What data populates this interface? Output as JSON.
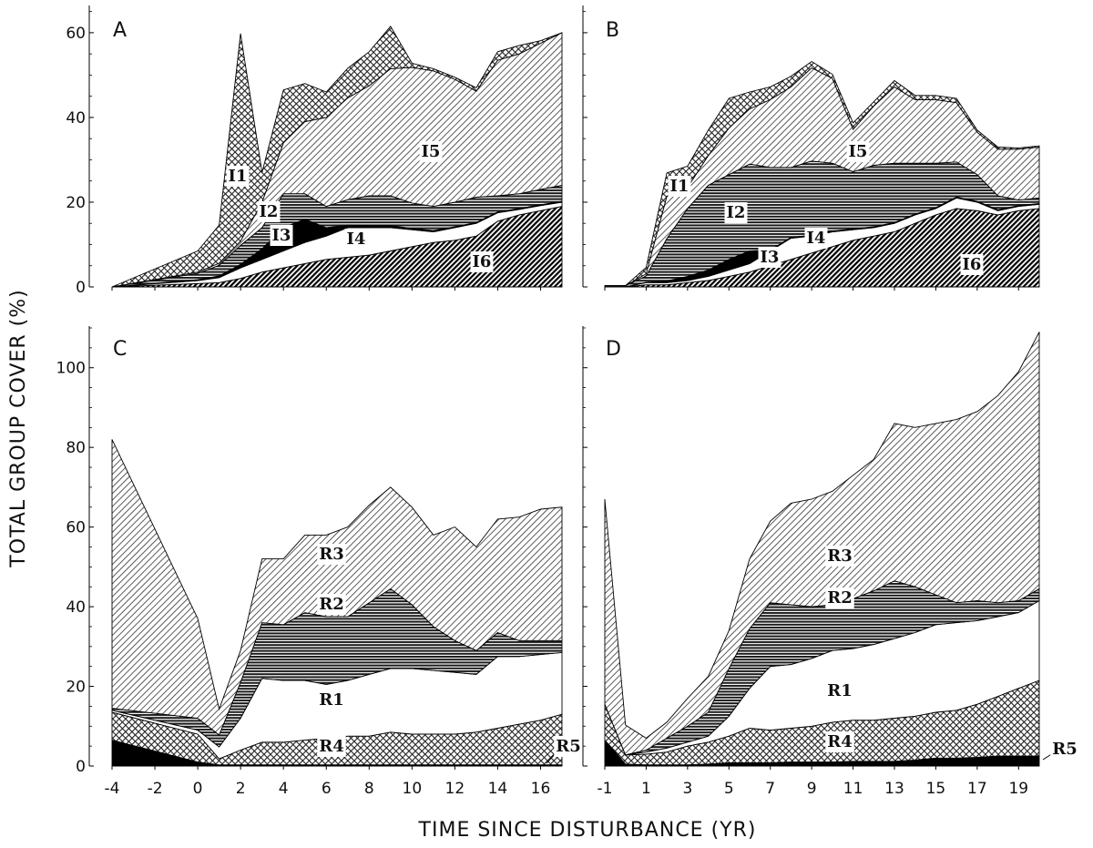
{
  "figure": {
    "y_axis_title": "TOTAL GROUP COVER (%)",
    "x_axis_title": "TIME SINCE DISTURBANCE (YR)"
  },
  "chart_data": [
    {
      "type": "area",
      "panel": "A",
      "stacked": true,
      "xlim": [
        -4,
        17
      ],
      "ylim": [
        0,
        66
      ],
      "yticks": [
        0,
        20,
        40,
        60
      ],
      "xticks": [
        -4,
        -2,
        0,
        2,
        4,
        6,
        8,
        10,
        12,
        14,
        16
      ],
      "show_x_tick_labels": false,
      "x": [
        -4,
        0,
        1,
        2,
        3,
        4,
        5,
        6,
        7,
        8,
        9,
        10,
        11,
        12,
        13,
        14,
        15,
        16,
        17
      ],
      "series": [
        {
          "name": "I6",
          "pattern": "hatch-dense",
          "values": [
            0,
            0.8,
            1,
            2,
            3.5,
            4.5,
            5.5,
            6.5,
            7,
            7.5,
            8.5,
            9.5,
            10.5,
            11,
            12,
            15.5,
            17,
            18,
            19
          ]
        },
        {
          "name": "I4",
          "pattern": "white",
          "values": [
            0,
            0.7,
            1.2,
            2.5,
            3,
            4,
            5,
            5.5,
            7,
            6.5,
            5.5,
            4,
            2.5,
            3,
            3,
            2,
            1.3,
            1.2,
            1
          ]
        },
        {
          "name": "I3",
          "pattern": "black",
          "values": [
            0,
            0.2,
            0.4,
            0.8,
            2.5,
            5.5,
            5.5,
            2,
            0.6,
            0.5,
            0.5,
            0.3,
            0.3,
            0.2,
            0.2,
            0.2,
            0.2,
            0.2,
            0.2
          ]
        },
        {
          "name": "I2",
          "pattern": "horizontal",
          "values": [
            0,
            1.5,
            2.5,
            4.5,
            5,
            8,
            6,
            5,
            6,
            7,
            7,
            6,
            5.7,
            5.8,
            6,
            3.8,
            3.5,
            3.6,
            3.8
          ]
        },
        {
          "name": "I5",
          "pattern": "hatch-light",
          "values": [
            0,
            0.3,
            0.5,
            1,
            6,
            12,
            17,
            21,
            24,
            26,
            30,
            32,
            32,
            29,
            25,
            32,
            33,
            34.5,
            36
          ]
        },
        {
          "name": "I1",
          "pattern": "crosshatch",
          "values": [
            0,
            5,
            9,
            49,
            7,
            12.5,
            9,
            6,
            7,
            8,
            10,
            1,
            0.5,
            0.5,
            0.8,
            2,
            2,
            0.6,
            0
          ]
        }
      ]
    },
    {
      "type": "area",
      "panel": "B",
      "stacked": true,
      "xlim": [
        -1,
        20
      ],
      "ylim": [
        0,
        66
      ],
      "yticks": [
        0,
        20,
        40,
        60
      ],
      "xticks": [
        -1,
        1,
        3,
        5,
        7,
        9,
        11,
        13,
        15,
        17,
        19
      ],
      "show_x_tick_labels": false,
      "x": [
        -1,
        0,
        1,
        2,
        3,
        4,
        5,
        6,
        7,
        8,
        9,
        10,
        11,
        12,
        13,
        14,
        15,
        16,
        17,
        18,
        19,
        20
      ],
      "series": [
        {
          "name": "I6",
          "pattern": "hatch-dense",
          "values": [
            0,
            0,
            0.5,
            0.5,
            1,
            1.5,
            2.5,
            3.5,
            5,
            6.5,
            8,
            9.5,
            11,
            12,
            13,
            15,
            17,
            18.5,
            18,
            17,
            18,
            18.5
          ]
        },
        {
          "name": "I4",
          "pattern": "white",
          "values": [
            0,
            0,
            0.5,
            0.5,
            0.5,
            1,
            1.5,
            2,
            3.5,
            5,
            4,
            3.5,
            2.5,
            2,
            2,
            2,
            1.5,
            2.5,
            2,
            1,
            1,
            1
          ]
        },
        {
          "name": "I3",
          "pattern": "black",
          "values": [
            0,
            0,
            0.1,
            0.4,
            1,
            1.5,
            2.5,
            3,
            0.2,
            0.2,
            0.2,
            0.2,
            0.2,
            0.2,
            0.2,
            0.2,
            0.2,
            0.2,
            0.2,
            0.2,
            0.2,
            0.2
          ]
        },
        {
          "name": "I2",
          "pattern": "horizontal",
          "values": [
            0.3,
            0.3,
            1.5,
            10,
            16,
            20,
            20,
            20.5,
            19.5,
            16.5,
            17.5,
            16,
            13.5,
            14.5,
            14,
            12,
            10.5,
            8.3,
            6.3,
            3.3,
            1.3,
            1.3
          ]
        },
        {
          "name": "I5",
          "pattern": "hatch-light",
          "values": [
            0,
            0,
            0.5,
            10,
            5,
            7,
            11,
            13,
            16,
            19,
            22,
            20,
            10,
            14,
            18,
            15,
            15,
            14,
            10,
            11,
            12,
            12
          ]
        },
        {
          "name": "I1",
          "pattern": "crosshatch",
          "values": [
            0,
            0,
            1.5,
            5.5,
            5,
            6,
            7,
            4,
            3,
            2.5,
            1.5,
            1,
            1.5,
            1,
            1.5,
            1,
            1,
            1,
            0.5,
            0.5,
            0.3,
            0.3
          ]
        }
      ]
    },
    {
      "type": "area",
      "panel": "C",
      "stacked": true,
      "xlim": [
        -4,
        17
      ],
      "ylim": [
        0,
        110
      ],
      "yticks": [
        0,
        20,
        40,
        60,
        80,
        100
      ],
      "xticks": [
        -4,
        -2,
        0,
        2,
        4,
        6,
        8,
        10,
        12,
        14,
        16
      ],
      "xticklabels": [
        "-4",
        "-2",
        "0",
        "2",
        "4",
        "6",
        "8",
        "10",
        "12",
        "14",
        "16"
      ],
      "show_x_tick_labels": true,
      "x": [
        -4,
        0,
        1,
        2,
        3,
        4,
        5,
        6,
        7,
        8,
        9,
        10,
        11,
        12,
        13,
        14,
        15,
        16,
        17
      ],
      "series": [
        {
          "name": "R5",
          "pattern": "black",
          "values": [
            6.5,
            1,
            0.3,
            0.3,
            0.3,
            0.3,
            0.3,
            0.3,
            0.3,
            0.3,
            0.3,
            0.3,
            0.3,
            0.3,
            0.3,
            0.3,
            0.3,
            0.3,
            0.3
          ]
        },
        {
          "name": "R4",
          "pattern": "crosshatch",
          "values": [
            7,
            7,
            1.5,
            3.7,
            5.7,
            5.7,
            6.2,
            6.7,
            7.2,
            7.2,
            8.2,
            7.7,
            7.7,
            7.7,
            8.2,
            9.2,
            10.2,
            11.2,
            12.7
          ]
        },
        {
          "name": "R1",
          "pattern": "white",
          "values": [
            0.5,
            1,
            3,
            8,
            16,
            15.5,
            15,
            13.5,
            14,
            15.5,
            16,
            16.5,
            16,
            15.5,
            14.5,
            18,
            17,
            16.5,
            15.5
          ]
        },
        {
          "name": "R2",
          "pattern": "horizontal",
          "values": [
            0.5,
            3,
            3,
            9,
            14,
            14,
            17,
            17,
            16,
            18,
            20,
            16,
            11,
            8,
            6,
            6,
            4,
            3.5,
            3
          ]
        },
        {
          "name": "R3",
          "pattern": "hatch-light",
          "values": [
            67.5,
            25,
            6.5,
            8,
            16,
            16.5,
            19.5,
            20.5,
            22.5,
            24.5,
            25.5,
            24.5,
            23,
            28.5,
            26,
            28.5,
            31,
            33,
            33.5
          ]
        }
      ]
    },
    {
      "type": "area",
      "panel": "D",
      "stacked": true,
      "xlim": [
        -1,
        20
      ],
      "ylim": [
        0,
        110
      ],
      "yticks": [
        0,
        20,
        40,
        60,
        80,
        100
      ],
      "xticks": [
        -1,
        1,
        3,
        5,
        7,
        9,
        11,
        13,
        15,
        17,
        19
      ],
      "xticklabels": [
        "-1",
        "1",
        "3",
        "5",
        "7",
        "9",
        "11",
        "13",
        "15",
        "17",
        "19"
      ],
      "show_x_tick_labels": true,
      "x": [
        -1,
        0,
        1,
        2,
        3,
        4,
        5,
        6,
        7,
        8,
        9,
        10,
        11,
        12,
        13,
        14,
        15,
        16,
        17,
        18,
        19,
        20
      ],
      "series": [
        {
          "name": "R5",
          "pattern": "black",
          "values": [
            6.5,
            0.5,
            0.3,
            0.3,
            0.3,
            0.5,
            0.8,
            0.8,
            0.8,
            1,
            1,
            1,
            1.2,
            1.2,
            1.2,
            1.5,
            2,
            2,
            2.2,
            2.5,
            2.5,
            2.5
          ]
        },
        {
          "name": "R4",
          "pattern": "crosshatch",
          "values": [
            9,
            2.3,
            2.7,
            3.2,
            4.7,
            5.5,
            6.7,
            8.7,
            8.2,
            8.5,
            9,
            10,
            10.3,
            10.3,
            10.8,
            11,
            11.5,
            12,
            13.3,
            15,
            17,
            19
          ]
        },
        {
          "name": "R1",
          "pattern": "white",
          "values": [
            0,
            0,
            0.5,
            1,
            1,
            1.5,
            5,
            10,
            16,
            16,
            17,
            18,
            18,
            19,
            20,
            21,
            22,
            22,
            21,
            20,
            19,
            20
          ]
        },
        {
          "name": "R2",
          "pattern": "horizontal",
          "values": [
            0,
            0,
            0.5,
            2.5,
            4,
            6,
            12,
            15,
            16,
            15,
            13,
            11.5,
            12.5,
            13.5,
            14.5,
            11.5,
            7.5,
            5,
            5,
            3.5,
            3,
            3
          ]
        },
        {
          "name": "R3",
          "pattern": "hatch-light",
          "values": [
            51.5,
            7.5,
            3,
            4,
            7,
            9,
            9.5,
            17.5,
            20.5,
            25.5,
            27,
            28.5,
            31,
            33,
            39.5,
            40,
            43,
            46,
            47.5,
            52,
            57.5,
            64.5
          ]
        }
      ]
    }
  ]
}
